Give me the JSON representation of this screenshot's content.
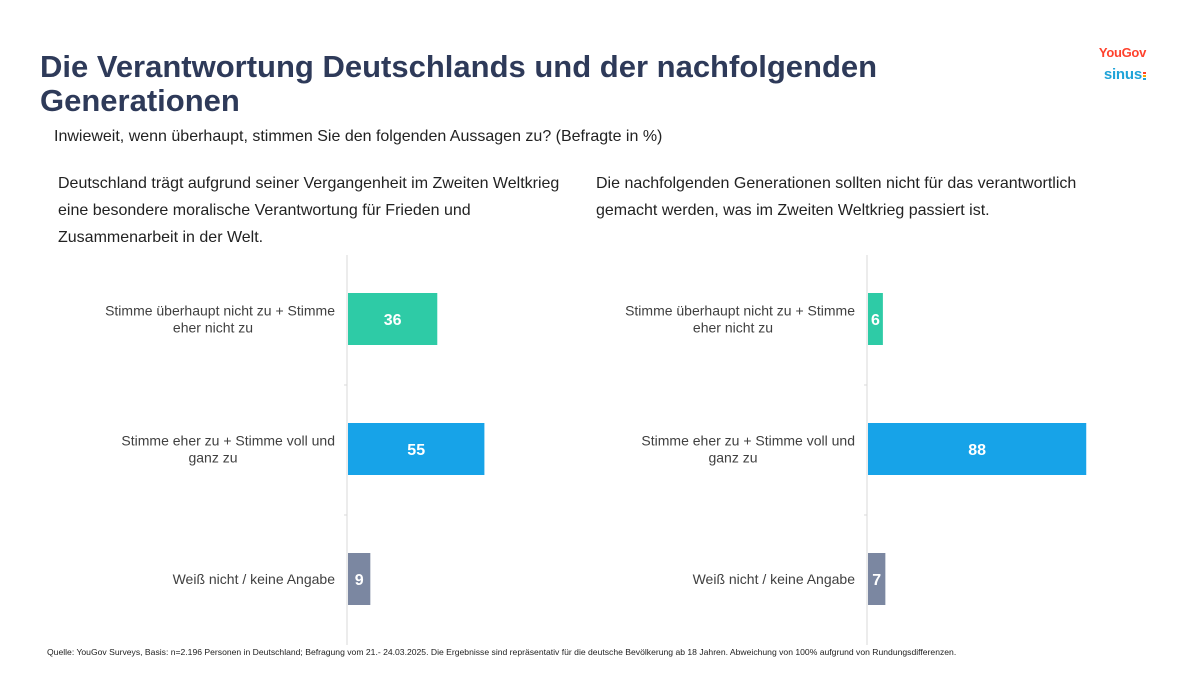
{
  "header": {
    "title": "Die Verantwortung Deutschlands und der nachfolgenden Generationen",
    "question": "Inwieweit, wenn überhaupt, stimmen Sie den folgenden Aussagen zu? (Befragte in %)"
  },
  "logos": {
    "yougov": "YouGov",
    "sinus": "sinus",
    "yougov_color": "#ff412c",
    "sinus_color": "#1fa3d8"
  },
  "panels": [
    {
      "title": "Deutschland trägt aufgrund seiner Vergangenheit im Zweiten Weltkrieg eine besondere moralische Verantwortung für Frieden und Zusammenarbeit in der Welt."
    },
    {
      "title": "Die nachfolgenden Generationen sollten nicht für das verantwortlich gemacht werden, was im Zweiten Weltkrieg passiert ist."
    }
  ],
  "chart_data": [
    {
      "type": "bar",
      "orientation": "horizontal",
      "categories": [
        [
          "Stimme überhaupt nicht zu + Stimme",
          "eher nicht zu"
        ],
        [
          "Stimme eher zu + Stimme voll und",
          "ganz zu"
        ],
        [
          "Weiß nicht / keine Angabe"
        ]
      ],
      "values": [
        36,
        55,
        9
      ],
      "colors": [
        "#2ecba6",
        "#17a3e8",
        "#7b87a1"
      ],
      "xlim": [
        0,
        100
      ],
      "grid": false
    },
    {
      "type": "bar",
      "orientation": "horizontal",
      "categories": [
        [
          "Stimme überhaupt nicht zu + Stimme",
          "eher nicht zu"
        ],
        [
          "Stimme eher zu + Stimme voll und",
          "ganz zu"
        ],
        [
          "Weiß nicht / keine Angabe"
        ]
      ],
      "values": [
        6,
        88,
        7
      ],
      "colors": [
        "#2ecba6",
        "#17a3e8",
        "#7b87a1"
      ],
      "xlim": [
        0,
        100
      ],
      "grid": false
    }
  ],
  "footer": {
    "source": "Quelle: YouGov Surveys, Basis: n=2.196 Personen in Deutschland; Befragung vom 21.- 24.03.2025. Die Ergebnisse sind repräsentativ für die deutsche Bevölkerung ab 18 Jahren. Abweichung von 100% aufgrund von Rundungsdifferenzen."
  }
}
